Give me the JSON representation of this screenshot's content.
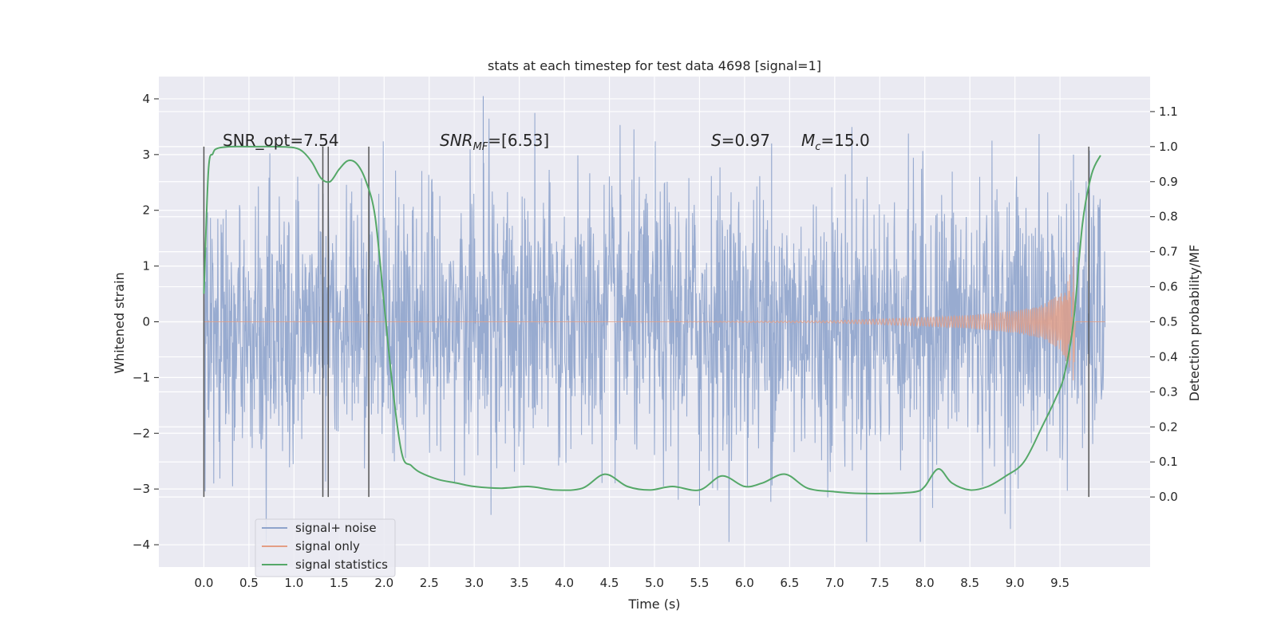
{
  "chart_data": {
    "type": "line",
    "title": "stats at each timestep for test data 4698 [signal=1]",
    "xlabel": "Time (s)",
    "ylabel": "Whitened strain",
    "y2label": "Detection probability/MF",
    "xlim": [
      -0.5,
      10.5
    ],
    "ylim": [
      -4.4,
      4.4
    ],
    "y2lim": [
      -0.2,
      1.2
    ],
    "x_ticks": [
      "0.0",
      "0.5",
      "1.0",
      "1.5",
      "2.0",
      "2.5",
      "3.0",
      "3.5",
      "4.0",
      "4.5",
      "5.0",
      "5.5",
      "6.0",
      "6.5",
      "7.0",
      "7.5",
      "8.0",
      "8.5",
      "9.0",
      "9.5"
    ],
    "y_ticks": [
      "4",
      "3",
      "2",
      "1",
      "0",
      "−1",
      "−2",
      "−3",
      "−4"
    ],
    "y2_ticks": [
      "1.1",
      "1.0",
      "0.9",
      "0.8",
      "0.7",
      "0.6",
      "0.5",
      "0.4",
      "0.3",
      "0.2",
      "0.1",
      "0.0"
    ],
    "grid": true,
    "legend_position": "lower-left",
    "annotations": {
      "snr_opt": "SNR_opt=7.54",
      "snr_mf_main": "SNR",
      "snr_mf_sub": "MF",
      "snr_mf_value": "=[6.53]",
      "s_var": "S",
      "s_value": "=0.97",
      "mc_var": "M",
      "mc_sub": "c",
      "mc_value": "=15.0"
    },
    "vertical_markers_x": [
      0.0,
      1.32,
      1.38,
      1.83,
      9.82
    ],
    "series": [
      {
        "name": "signal+ noise",
        "color": "#8fa4cc",
        "x_range": [
          0.0,
          10.0
        ],
        "typical_amplitude": 1.3,
        "max_value": 4.05,
        "min_value": -3.95
      },
      {
        "name": "signal only",
        "color": "#e49e84",
        "envelope_x": [
          0.0,
          5.0,
          7.0,
          8.0,
          8.5,
          9.0,
          9.3,
          9.5,
          9.6,
          9.65,
          9.67,
          10.0
        ],
        "envelope_y": [
          0.0,
          0.0,
          0.02,
          0.08,
          0.12,
          0.2,
          0.3,
          0.5,
          0.8,
          1.3,
          0.0,
          0.0
        ]
      },
      {
        "name": "signal statistics",
        "color": "#55a868",
        "axis": "right",
        "x": [
          0.0,
          0.05,
          0.1,
          0.15,
          0.3,
          0.5,
          0.8,
          1.0,
          1.1,
          1.2,
          1.3,
          1.4,
          1.5,
          1.6,
          1.7,
          1.8,
          1.9,
          2.0,
          2.1,
          2.2,
          2.3,
          2.4,
          2.6,
          2.8,
          3.0,
          3.3,
          3.6,
          3.9,
          4.2,
          4.45,
          4.7,
          4.95,
          5.2,
          5.5,
          5.75,
          6.0,
          6.2,
          6.45,
          6.7,
          7.0,
          7.3,
          7.6,
          7.9,
          8.0,
          8.15,
          8.3,
          8.5,
          8.7,
          8.9,
          9.1,
          9.3,
          9.45,
          9.55,
          9.65,
          9.75,
          9.85,
          9.95
        ],
        "y": [
          0.58,
          0.93,
          0.98,
          0.995,
          1.0,
          1.0,
          1.0,
          0.997,
          0.985,
          0.955,
          0.91,
          0.9,
          0.935,
          0.96,
          0.95,
          0.9,
          0.8,
          0.55,
          0.3,
          0.12,
          0.09,
          0.07,
          0.05,
          0.04,
          0.03,
          0.025,
          0.03,
          0.02,
          0.025,
          0.065,
          0.03,
          0.02,
          0.03,
          0.02,
          0.06,
          0.03,
          0.04,
          0.065,
          0.025,
          0.015,
          0.01,
          0.01,
          0.015,
          0.03,
          0.08,
          0.04,
          0.02,
          0.03,
          0.06,
          0.1,
          0.2,
          0.28,
          0.35,
          0.5,
          0.78,
          0.92,
          0.975
        ]
      }
    ]
  }
}
